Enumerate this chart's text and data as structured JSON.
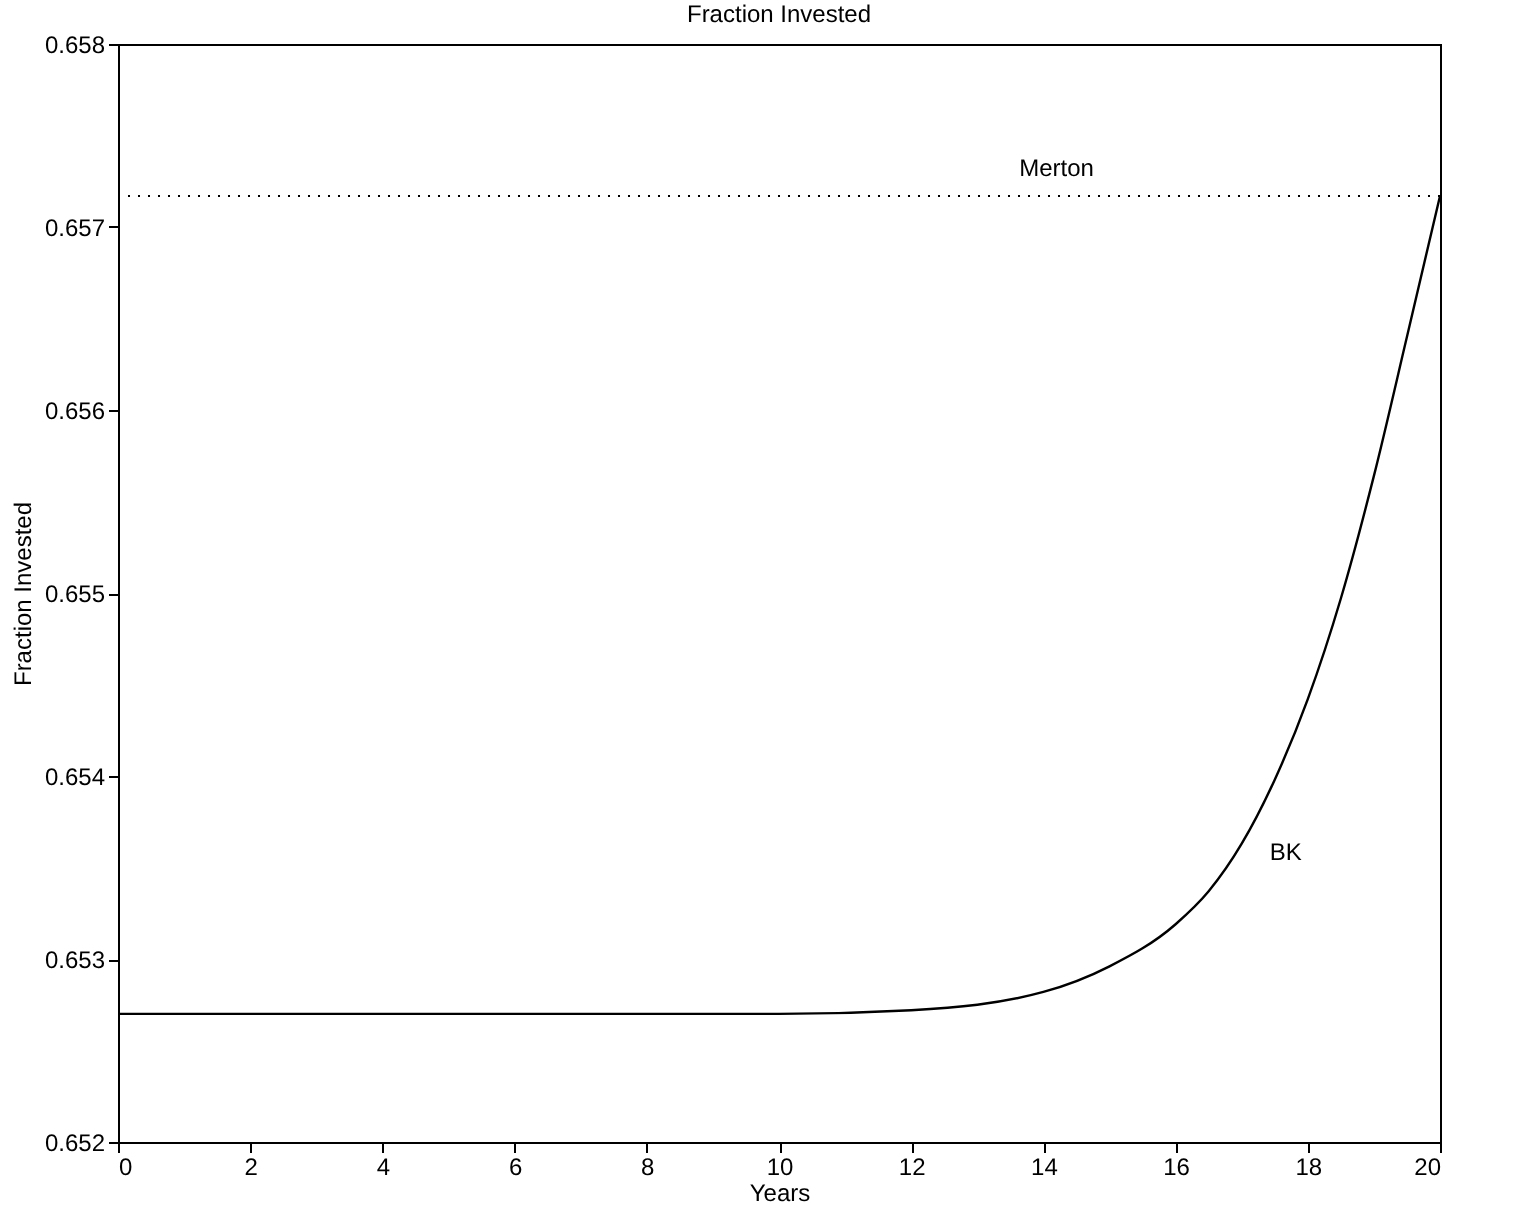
{
  "chart_data": {
    "type": "line",
    "title": "Fraction Invested",
    "xlabel": "Years",
    "ylabel": "Fraction Invested",
    "xlim": [
      0,
      20
    ],
    "xticks": [
      0,
      2,
      4,
      6,
      8,
      10,
      12,
      14,
      16,
      18,
      20
    ],
    "ylim": [
      0.652,
      0.658
    ],
    "yticks": [
      0.652,
      0.653,
      0.654,
      0.655,
      0.656,
      0.657,
      0.658
    ],
    "grid": false,
    "line_style": "solid",
    "series": [
      {
        "name": "BK",
        "color": "#000000",
        "x": [
          0,
          2,
          4,
          6,
          8,
          10,
          12,
          14,
          15,
          16,
          16.5,
          17,
          17.5,
          18,
          18.5,
          19,
          19.5,
          20
        ],
        "values": [
          0.6527,
          0.6527,
          0.6527,
          0.6527,
          0.6527,
          0.6527,
          0.65272,
          0.65282,
          0.65296,
          0.65319,
          0.65337,
          0.65363,
          0.65398,
          0.65442,
          0.65497,
          0.65564,
          0.6564,
          0.65717
        ]
      }
    ],
    "ref_lines": [
      {
        "axis": "y",
        "value": 0.65717,
        "label": "Merton",
        "color": "#000000",
        "line_style": "dotted"
      }
    ]
  }
}
